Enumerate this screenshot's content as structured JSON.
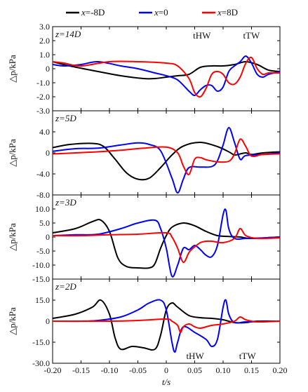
{
  "legend": [
    {
      "prefix": "x",
      "text": "=-8D",
      "color": "#000000"
    },
    {
      "prefix": "x",
      "text": "=0",
      "color": "#0000ff"
    },
    {
      "prefix": "x",
      "text": "=8D",
      "color": "#ff0000"
    }
  ],
  "xaxis": {
    "label": "t/s",
    "ticks": [
      "-0.20",
      "-0.15",
      "-0.10",
      "-0.05",
      "0",
      "0.05",
      "0.10",
      "0.15",
      "0.20"
    ]
  },
  "chart_data": [
    {
      "type": "line",
      "panel_label": "z=14D",
      "ylabel": "△p/kPa",
      "ylim": [
        -3.0,
        3.0
      ],
      "yticks": [
        "3.0",
        "2.0",
        "1.0",
        "0",
        "-1.0",
        "-2.0",
        "-3.0"
      ],
      "annotations": [
        "tHW",
        "tTW"
      ],
      "series": [
        {
          "color": "#000000",
          "x": [
            -0.2,
            -0.17,
            -0.12,
            -0.08,
            -0.04,
            -0.02,
            0.0,
            0.02,
            0.04,
            0.06,
            0.08,
            0.1,
            0.12,
            0.14,
            0.16,
            0.18,
            0.2
          ],
          "y": [
            0.5,
            0.2,
            -0.2,
            -0.5,
            -0.7,
            -0.7,
            -0.6,
            -0.5,
            -0.4,
            0.1,
            0.2,
            0.2,
            0.3,
            0.5,
            0.3,
            -0.1,
            -0.2
          ]
        },
        {
          "color": "#0000ff",
          "x": [
            -0.2,
            -0.18,
            -0.15,
            -0.12,
            -0.08,
            -0.05,
            -0.02,
            0.0,
            0.02,
            0.04,
            0.05,
            0.06,
            0.07,
            0.08,
            0.09,
            0.1,
            0.11,
            0.12,
            0.13,
            0.14,
            0.15,
            0.16,
            0.17,
            0.18,
            0.2
          ],
          "y": [
            0.3,
            0.2,
            0.3,
            0.5,
            0.2,
            0.0,
            -0.3,
            -0.5,
            -0.8,
            -1.6,
            -1.9,
            -1.5,
            -1.2,
            -1.2,
            -1.6,
            -1.3,
            -0.2,
            0.2,
            0.5,
            0.9,
            0.4,
            -0.4,
            -0.6,
            -0.4,
            -0.2
          ]
        },
        {
          "color": "#ff0000",
          "x": [
            -0.2,
            -0.18,
            -0.15,
            -0.1,
            -0.05,
            0.0,
            0.02,
            0.04,
            0.05,
            0.06,
            0.07,
            0.08,
            0.09,
            0.1,
            0.11,
            0.12,
            0.13,
            0.14,
            0.15,
            0.16,
            0.17,
            0.18,
            0.2
          ],
          "y": [
            0.5,
            0.4,
            0.2,
            0.5,
            0.5,
            0.4,
            0.2,
            -0.7,
            -1.7,
            -2.0,
            -1.4,
            -0.4,
            -0.2,
            -0.4,
            -1.0,
            -1.1,
            -0.6,
            0.4,
            0.8,
            0.0,
            -0.4,
            -0.3,
            -0.3
          ]
        }
      ]
    },
    {
      "type": "line",
      "panel_label": "z=5D",
      "ylabel": "△p/kPa",
      "ylim": [
        -8.0,
        8.0
      ],
      "yticks": [
        "4.0",
        "0",
        "-4.0",
        "-8.0"
      ],
      "series": [
        {
          "color": "#000000",
          "x": [
            -0.2,
            -0.17,
            -0.13,
            -0.11,
            -0.09,
            -0.07,
            -0.05,
            -0.03,
            -0.01,
            0.01,
            0.03,
            0.06,
            0.09,
            0.11,
            0.12,
            0.13,
            0.14,
            0.15,
            0.17,
            0.2
          ],
          "y": [
            1.0,
            1.6,
            1.8,
            1.2,
            -1.2,
            -3.8,
            -5.0,
            -4.8,
            -2.8,
            -0.4,
            1.3,
            2.0,
            1.2,
            0.2,
            -0.4,
            -0.2,
            0.0,
            -0.3,
            0.0,
            0.2
          ]
        },
        {
          "color": "#0000ff",
          "x": [
            -0.2,
            -0.16,
            -0.12,
            -0.08,
            -0.05,
            -0.03,
            -0.01,
            0.01,
            0.02,
            0.03,
            0.04,
            0.06,
            0.08,
            0.09,
            0.1,
            0.11,
            0.12,
            0.13,
            0.14,
            0.17,
            0.2
          ],
          "y": [
            0.3,
            0.8,
            0.9,
            1.5,
            1.9,
            1.6,
            0.4,
            -4.8,
            -7.6,
            -5.0,
            -2.8,
            -2.7,
            -2.6,
            -1.5,
            1.5,
            4.8,
            2.0,
            -1.2,
            -0.5,
            -0.3,
            0.0
          ]
        },
        {
          "color": "#ff0000",
          "x": [
            -0.2,
            -0.16,
            -0.12,
            -0.08,
            -0.04,
            0.0,
            0.02,
            0.03,
            0.04,
            0.05,
            0.06,
            0.07,
            0.09,
            0.11,
            0.12,
            0.13,
            0.14,
            0.15,
            0.17,
            0.2
          ],
          "y": [
            -0.2,
            0.0,
            0.2,
            0.5,
            0.9,
            1.1,
            0.0,
            -2.5,
            -4.1,
            -1.2,
            -0.9,
            -1.3,
            -1.7,
            -1.6,
            -0.2,
            2.6,
            1.2,
            -0.6,
            -0.3,
            -0.2
          ]
        }
      ]
    },
    {
      "type": "line",
      "panel_label": "z=3D",
      "ylabel": "△p/kPa",
      "ylim": [
        -15.0,
        15.0
      ],
      "yticks": [
        "10.0",
        "5.0",
        "0",
        "-5.0",
        "-10.0",
        "-15.0"
      ],
      "series": [
        {
          "color": "#000000",
          "x": [
            -0.2,
            -0.16,
            -0.13,
            -0.115,
            -0.1,
            -0.085,
            -0.07,
            -0.05,
            -0.03,
            -0.02,
            -0.01,
            0.0,
            0.01,
            0.03,
            0.05,
            0.07,
            0.09,
            0.11,
            0.13,
            0.15,
            0.2
          ],
          "y": [
            1.5,
            3.0,
            5.5,
            6.0,
            2.0,
            -7.5,
            -10.5,
            -11.0,
            -11.0,
            -9.5,
            -4.0,
            0.5,
            3.5,
            5.0,
            4.0,
            2.0,
            0.5,
            0.2,
            0.0,
            -0.5,
            0.0
          ]
        },
        {
          "color": "#0000ff",
          "x": [
            -0.2,
            -0.16,
            -0.12,
            -0.08,
            -0.05,
            -0.02,
            -0.01,
            0.0,
            0.01,
            0.02,
            0.03,
            0.04,
            0.05,
            0.06,
            0.07,
            0.08,
            0.09,
            0.1,
            0.105,
            0.11,
            0.12,
            0.14,
            0.17,
            0.2
          ],
          "y": [
            0.5,
            0.8,
            1.0,
            3.0,
            5.0,
            6.0,
            3.0,
            -4.0,
            -14.0,
            -10.0,
            -4.0,
            -4.5,
            -3.0,
            -4.5,
            -6.5,
            -7.0,
            -3.0,
            8.0,
            9.5,
            3.0,
            -0.5,
            -0.5,
            -0.3,
            0.0
          ]
        },
        {
          "color": "#ff0000",
          "x": [
            -0.2,
            -0.15,
            -0.1,
            -0.05,
            0.0,
            0.01,
            0.02,
            0.03,
            0.04,
            0.05,
            0.06,
            0.07,
            0.08,
            0.1,
            0.12,
            0.13,
            0.14,
            0.16,
            0.2
          ],
          "y": [
            0.5,
            0.5,
            0.8,
            1.0,
            1.5,
            0.0,
            -4.0,
            -9.0,
            -5.5,
            -3.5,
            -2.0,
            -1.5,
            -1.5,
            -2.0,
            -0.5,
            3.0,
            0.5,
            -0.5,
            -0.3
          ]
        }
      ]
    },
    {
      "type": "line",
      "panel_label": "z=2D",
      "ylabel": "△p/kPa",
      "ylim": [
        -30.0,
        30.0
      ],
      "yticks": [
        "15.0",
        "0",
        "-15.0",
        "-30.0"
      ],
      "annotations": [
        "tHW",
        "tTW"
      ],
      "series": [
        {
          "color": "#000000",
          "x": [
            -0.2,
            -0.16,
            -0.13,
            -0.115,
            -0.1,
            -0.09,
            -0.08,
            -0.06,
            -0.04,
            -0.02,
            -0.01,
            0.0,
            0.01,
            0.02,
            0.04,
            0.06,
            0.08,
            0.1,
            0.12,
            0.14,
            0.16,
            0.2
          ],
          "y": [
            2.0,
            5.0,
            10.0,
            15.0,
            5.0,
            -12.0,
            -20.0,
            -18.0,
            -19.0,
            -20.0,
            -10.0,
            8.0,
            13.0,
            10.0,
            4.0,
            2.5,
            2.0,
            1.0,
            -1.0,
            -1.0,
            0.0,
            0.0
          ]
        },
        {
          "color": "#0000ff",
          "x": [
            -0.2,
            -0.15,
            -0.12,
            -0.08,
            -0.05,
            -0.03,
            -0.01,
            0.0,
            0.01,
            0.015,
            0.02,
            0.03,
            0.05,
            0.07,
            0.08,
            0.09,
            0.1,
            0.105,
            0.11,
            0.12,
            0.14,
            0.17,
            0.2
          ],
          "y": [
            0.0,
            0.0,
            0.5,
            3.0,
            8.0,
            13.0,
            15.0,
            8.0,
            -15.0,
            -22.0,
            -15.0,
            -4.0,
            -8.0,
            -13.0,
            -18.0,
            -13.0,
            10.0,
            15.0,
            5.0,
            -1.0,
            -0.5,
            -0.3,
            0.0
          ]
        },
        {
          "color": "#ff0000",
          "x": [
            -0.2,
            -0.1,
            -0.05,
            0.0,
            0.01,
            0.02,
            0.025,
            0.03,
            0.04,
            0.05,
            0.06,
            0.08,
            0.1,
            0.12,
            0.13,
            0.14,
            0.16,
            0.2
          ],
          "y": [
            0.0,
            0.0,
            0.5,
            1.5,
            0.0,
            -3.0,
            -8.0,
            -4.0,
            -2.0,
            -4.0,
            -5.0,
            -3.0,
            -2.0,
            0.0,
            3.0,
            1.0,
            -0.5,
            0.0
          ]
        }
      ]
    }
  ]
}
